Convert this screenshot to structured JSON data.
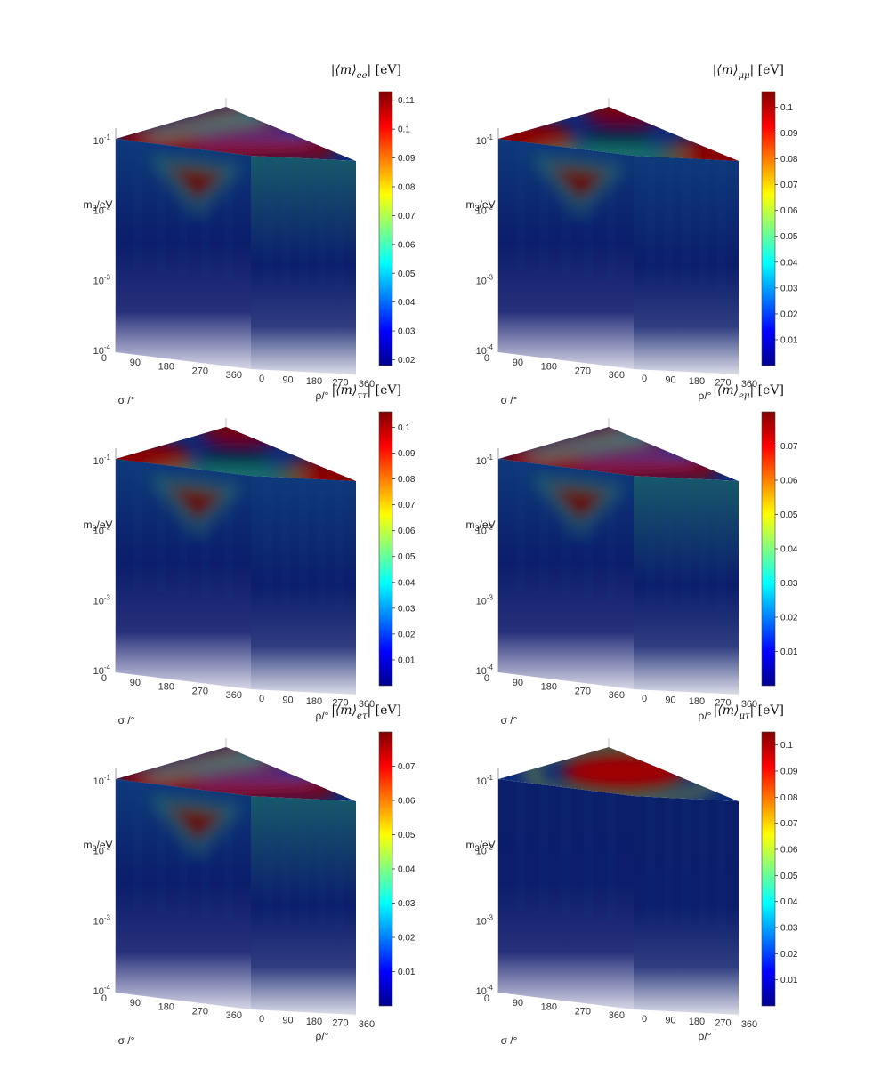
{
  "colormap": [
    "#00008f",
    "#0000ff",
    "#0080ff",
    "#00ffff",
    "#80ff80",
    "#ffff00",
    "#ff8000",
    "#ff0000",
    "#800000"
  ],
  "chart_data": [
    {
      "type": "3d-volume",
      "title": "|⟨m⟩ee| [eV]",
      "title_main": "|⟨m⟩",
      "title_sub": "ee",
      "title_unit": "| [eV]",
      "xlabel": "ρ/°",
      "ylabel": "σ /°",
      "zlabel": "m3/eV",
      "zlabel_main": "m",
      "zlabel_sub": "3",
      "zlabel_unit": "/eV",
      "x_ticks": [
        "0",
        "90",
        "180",
        "270",
        "360"
      ],
      "y_ticks": [
        "0",
        "90",
        "180",
        "270",
        "360"
      ],
      "z_scale": "log",
      "z_ticks": [
        {
          "base": "10",
          "exp": "-4"
        },
        {
          "base": "10",
          "exp": "-3"
        },
        {
          "base": "10",
          "exp": "-2"
        },
        {
          "base": "10",
          "exp": "-1"
        }
      ],
      "colorbar_ticks": [
        "0.02",
        "0.03",
        "0.04",
        "0.05",
        "0.06",
        "0.07",
        "0.08",
        "0.09",
        "0.1",
        "0.11"
      ],
      "colorbar_values": [
        0.02,
        0.03,
        0.04,
        0.05,
        0.06,
        0.07,
        0.08,
        0.09,
        0.1,
        0.11
      ],
      "colorbar_range": [
        0.018,
        0.113
      ],
      "pattern": "stripes",
      "front_triangle": true
    },
    {
      "type": "3d-volume",
      "title": "|⟨m⟩μμ| [eV]",
      "title_main": "|⟨m⟩",
      "title_sub": "μμ",
      "title_unit": "| [eV]",
      "xlabel": "ρ/°",
      "ylabel": "σ /°",
      "zlabel": "m3/eV",
      "zlabel_main": "m",
      "zlabel_sub": "3",
      "zlabel_unit": "/eV",
      "x_ticks": [
        "0",
        "90",
        "180",
        "270",
        "360"
      ],
      "y_ticks": [
        "0",
        "90",
        "180",
        "270",
        "360"
      ],
      "z_scale": "log",
      "z_ticks": [
        {
          "base": "10",
          "exp": "-4"
        },
        {
          "base": "10",
          "exp": "-3"
        },
        {
          "base": "10",
          "exp": "-2"
        },
        {
          "base": "10",
          "exp": "-1"
        }
      ],
      "colorbar_ticks": [
        "0.01",
        "0.02",
        "0.03",
        "0.04",
        "0.05",
        "0.06",
        "0.07",
        "0.08",
        "0.09",
        "0.1"
      ],
      "colorbar_values": [
        0.01,
        0.02,
        0.03,
        0.04,
        0.05,
        0.06,
        0.07,
        0.08,
        0.09,
        0.1
      ],
      "colorbar_range": [
        0.0,
        0.106
      ],
      "pattern": "corners",
      "front_triangle": true
    },
    {
      "type": "3d-volume",
      "title": "|⟨m⟩ττ| [eV]",
      "title_main": "|⟨m⟩",
      "title_sub": "ττ",
      "title_unit": "| [eV]",
      "xlabel": "ρ/°",
      "ylabel": "σ /°",
      "zlabel": "m3/eV",
      "zlabel_main": "m",
      "zlabel_sub": "3",
      "zlabel_unit": "/eV",
      "x_ticks": [
        "0",
        "90",
        "180",
        "270",
        "360"
      ],
      "y_ticks": [
        "0",
        "90",
        "180",
        "270",
        "360"
      ],
      "z_scale": "log",
      "z_ticks": [
        {
          "base": "10",
          "exp": "-4"
        },
        {
          "base": "10",
          "exp": "-3"
        },
        {
          "base": "10",
          "exp": "-2"
        },
        {
          "base": "10",
          "exp": "-1"
        }
      ],
      "colorbar_ticks": [
        "0.01",
        "0.02",
        "0.03",
        "0.04",
        "0.05",
        "0.06",
        "0.07",
        "0.08",
        "0.09",
        "0.1"
      ],
      "colorbar_values": [
        0.01,
        0.02,
        0.03,
        0.04,
        0.05,
        0.06,
        0.07,
        0.08,
        0.09,
        0.1
      ],
      "colorbar_range": [
        0.0,
        0.106
      ],
      "pattern": "corners",
      "front_triangle": true
    },
    {
      "type": "3d-volume",
      "title": "|⟨m⟩eμ| [eV]",
      "title_main": "|⟨m⟩",
      "title_sub": "eμ",
      "title_unit": "| [eV]",
      "xlabel": "ρ/°",
      "ylabel": "σ /°",
      "zlabel": "m3/eV",
      "zlabel_main": "m",
      "zlabel_sub": "3",
      "zlabel_unit": "/eV",
      "x_ticks": [
        "0",
        "90",
        "180",
        "270",
        "360"
      ],
      "y_ticks": [
        "0",
        "90",
        "180",
        "270",
        "360"
      ],
      "z_scale": "log",
      "z_ticks": [
        {
          "base": "10",
          "exp": "-4"
        },
        {
          "base": "10",
          "exp": "-3"
        },
        {
          "base": "10",
          "exp": "-2"
        },
        {
          "base": "10",
          "exp": "-1"
        }
      ],
      "colorbar_ticks": [
        "0.01",
        "0.02",
        "0.03",
        "0.04",
        "0.05",
        "0.06",
        "0.07"
      ],
      "colorbar_values": [
        0.01,
        0.02,
        0.03,
        0.04,
        0.05,
        0.06,
        0.07
      ],
      "colorbar_range": [
        0.0,
        0.08
      ],
      "pattern": "stripes",
      "front_triangle": true
    },
    {
      "type": "3d-volume",
      "title": "|⟨m⟩eτ| [eV]",
      "title_main": "|⟨m⟩",
      "title_sub": "eτ",
      "title_unit": "| [eV]",
      "xlabel": "ρ/°",
      "ylabel": "σ /°",
      "zlabel": "m3/eV",
      "zlabel_main": "m",
      "zlabel_sub": "3",
      "zlabel_unit": "/eV",
      "x_ticks": [
        "0",
        "90",
        "180",
        "270",
        "360"
      ],
      "y_ticks": [
        "0",
        "90",
        "180",
        "270",
        "360"
      ],
      "z_scale": "log",
      "z_ticks": [
        {
          "base": "10",
          "exp": "-4"
        },
        {
          "base": "10",
          "exp": "-3"
        },
        {
          "base": "10",
          "exp": "-2"
        },
        {
          "base": "10",
          "exp": "-1"
        }
      ],
      "colorbar_ticks": [
        "0.01",
        "0.02",
        "0.03",
        "0.04",
        "0.05",
        "0.06",
        "0.07"
      ],
      "colorbar_values": [
        0.01,
        0.02,
        0.03,
        0.04,
        0.05,
        0.06,
        0.07
      ],
      "colorbar_range": [
        0.0,
        0.08
      ],
      "pattern": "stripes",
      "front_triangle": true
    },
    {
      "type": "3d-volume",
      "title": "|⟨m⟩μτ| [eV]",
      "title_main": "|⟨m⟩",
      "title_sub": "μτ",
      "title_unit": "| [eV]",
      "xlabel": "ρ/°",
      "ylabel": "σ /°",
      "zlabel": "m3/eV",
      "zlabel_main": "m",
      "zlabel_sub": "3",
      "zlabel_unit": "/eV",
      "x_ticks": [
        "0",
        "90",
        "180",
        "270",
        "360"
      ],
      "y_ticks": [
        "0",
        "90",
        "180",
        "270",
        "360"
      ],
      "z_scale": "log",
      "z_ticks": [
        {
          "base": "10",
          "exp": "-4"
        },
        {
          "base": "10",
          "exp": "-3"
        },
        {
          "base": "10",
          "exp": "-2"
        },
        {
          "base": "10",
          "exp": "-1"
        }
      ],
      "colorbar_ticks": [
        "0.01",
        "0.02",
        "0.03",
        "0.04",
        "0.05",
        "0.06",
        "0.07",
        "0.08",
        "0.09",
        "0.1"
      ],
      "colorbar_values": [
        0.01,
        0.02,
        0.03,
        0.04,
        0.05,
        0.06,
        0.07,
        0.08,
        0.09,
        0.1
      ],
      "colorbar_range": [
        0.0,
        0.105
      ],
      "pattern": "ellipse",
      "front_triangle": false
    }
  ]
}
